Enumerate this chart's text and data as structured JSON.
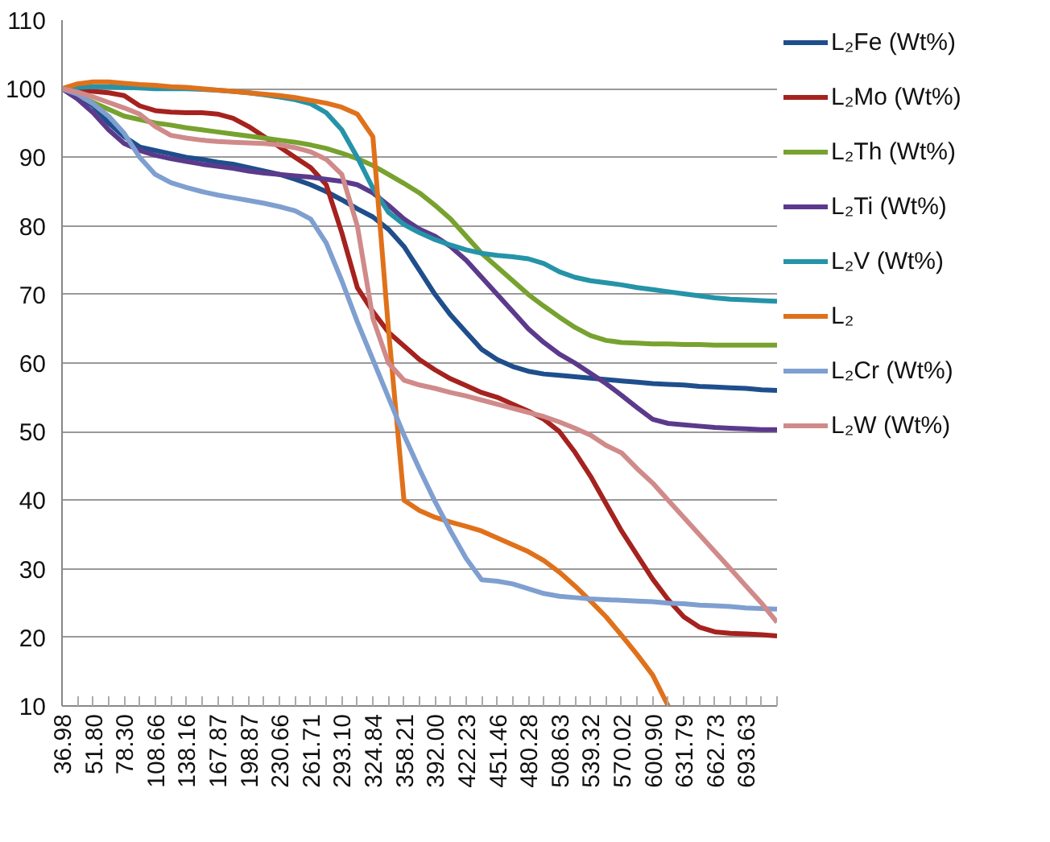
{
  "chart_data": {
    "type": "line",
    "categories": [
      "36.98",
      null,
      "51.80",
      null,
      "78.30",
      null,
      "108.66",
      null,
      "138.16",
      null,
      "167.87",
      null,
      "198.87",
      null,
      "230.66",
      null,
      "261.71",
      null,
      "293.10",
      null,
      "324.84",
      null,
      "358.21",
      null,
      "392.00",
      null,
      "422.23",
      null,
      "451.46",
      null,
      "480.28",
      null,
      "508.63",
      null,
      "539.32",
      null,
      "570.02",
      null,
      "600.90",
      null,
      "631.79",
      null,
      "662.73",
      null,
      "693.63",
      null,
      null
    ],
    "ylim": [
      10,
      110
    ],
    "yticks": [
      10,
      20,
      30,
      40,
      50,
      60,
      70,
      80,
      90,
      100,
      110
    ],
    "grid": "y",
    "legend": "right",
    "marker": "none",
    "line_style": "solid",
    "series": [
      {
        "name": "L₂Fe (Wt%)",
        "color": "#1f4e8c",
        "values": [
          100,
          99,
          97.5,
          95,
          93,
          91.5,
          91,
          90.5,
          90,
          89.7,
          89.3,
          89,
          88.5,
          88,
          87.5,
          86.8,
          86,
          85,
          83.8,
          82.5,
          81.3,
          79.5,
          77,
          73.5,
          70,
          67,
          64.5,
          62,
          60.5,
          59.5,
          58.8,
          58.4,
          58.2,
          58,
          57.8,
          57.6,
          57.4,
          57.2,
          57,
          56.9,
          56.8,
          56.6,
          56.5,
          56.4,
          56.3,
          56.1,
          56
        ]
      },
      {
        "name": "L₂Mo (Wt%)",
        "color": "#a5221e",
        "values": [
          100,
          99.9,
          99.6,
          99.4,
          99,
          97.5,
          96.8,
          96.6,
          96.5,
          96.5,
          96.3,
          95.7,
          94.5,
          93,
          91.5,
          90,
          88.5,
          86,
          79,
          71,
          67.5,
          64.5,
          62.5,
          60.5,
          59,
          57.7,
          56.7,
          55.7,
          55,
          54,
          53,
          51.8,
          50,
          47,
          43.5,
          39.5,
          35.5,
          32,
          28.5,
          25.5,
          23,
          21.5,
          20.8,
          20.6,
          20.5,
          20.4,
          20.2
        ]
      },
      {
        "name": "L₂Th (Wt%)",
        "color": "#77a22f",
        "values": [
          100,
          99,
          98,
          97,
          96,
          95.5,
          95,
          94.7,
          94.3,
          94,
          93.7,
          93.4,
          93.1,
          92.8,
          92.5,
          92.2,
          91.8,
          91.3,
          90.6,
          89.8,
          88.8,
          87.5,
          86.2,
          84.8,
          83,
          81,
          78.5,
          76,
          74,
          72,
          70,
          68.3,
          66.7,
          65.2,
          64,
          63.3,
          63,
          62.9,
          62.8,
          62.8,
          62.7,
          62.7,
          62.6,
          62.6,
          62.6,
          62.6,
          62.6
        ]
      },
      {
        "name": "L₂Ti (Wt%)",
        "color": "#5b3a8c",
        "values": [
          100,
          98.5,
          96.5,
          94,
          92,
          91,
          90.3,
          89.8,
          89.4,
          89,
          88.7,
          88.4,
          88,
          87.7,
          87.5,
          87.3,
          87.1,
          86.8,
          86.5,
          86,
          84.8,
          83,
          81,
          79.5,
          78.5,
          77,
          75,
          72.5,
          70,
          67.5,
          65,
          63,
          61.3,
          60,
          58.5,
          57,
          55.3,
          53.5,
          51.8,
          51.2,
          51,
          50.8,
          50.6,
          50.5,
          50.4,
          50.3,
          50.3
        ]
      },
      {
        "name": "L₂V (Wt%)",
        "color": "#2593a8",
        "values": [
          100,
          100.2,
          100.3,
          100.3,
          100.2,
          100.1,
          100,
          100,
          100,
          99.9,
          99.8,
          99.6,
          99.4,
          99.1,
          98.8,
          98.4,
          97.8,
          96.5,
          94,
          90,
          85.5,
          82,
          80.2,
          79,
          78,
          77.2,
          76.5,
          76,
          75.7,
          75.5,
          75.2,
          74.5,
          73.3,
          72.5,
          72,
          71.7,
          71.4,
          71,
          70.7,
          70.4,
          70.1,
          69.8,
          69.5,
          69.3,
          69.2,
          69.1,
          69
        ]
      },
      {
        "name": "L₂",
        "color": "#e0711b",
        "values": [
          100,
          100.7,
          101,
          101,
          100.8,
          100.6,
          100.5,
          100.3,
          100.2,
          100,
          99.8,
          99.6,
          99.4,
          99.2,
          99,
          98.7,
          98.3,
          97.9,
          97.3,
          96.3,
          93,
          65,
          40,
          38.5,
          37.5,
          36.8,
          36.2,
          35.5,
          34.5,
          33.5,
          32.5,
          31.2,
          29.5,
          27.5,
          25.3,
          23,
          20.3,
          17.5,
          14.5,
          10,
          null,
          null,
          null,
          null,
          null,
          null,
          null
        ]
      },
      {
        "name": "L₂Cr (Wt%)",
        "color": "#7f9fd0",
        "values": [
          100,
          99.2,
          97.8,
          96,
          93.5,
          90,
          87.5,
          86.3,
          85.6,
          85,
          84.5,
          84.1,
          83.7,
          83.3,
          82.8,
          82.2,
          81,
          77.5,
          72,
          66,
          60.5,
          55,
          49.5,
          44.5,
          39.8,
          35.5,
          31.5,
          28.4,
          28.2,
          27.8,
          27.1,
          26.4,
          26,
          25.8,
          25.6,
          25.5,
          25.4,
          25.3,
          25.2,
          25,
          24.9,
          24.7,
          24.6,
          24.5,
          24.3,
          24.2,
          24.1
        ]
      },
      {
        "name": "L₂W (Wt%)",
        "color": "#d08a8a",
        "values": [
          100,
          99.5,
          98.8,
          98,
          97.2,
          96.3,
          94.5,
          93.2,
          92.8,
          92.5,
          92.3,
          92.2,
          92.1,
          92,
          91.8,
          91.4,
          90.8,
          89.7,
          87.5,
          80,
          66.5,
          60,
          57.5,
          56.8,
          56.3,
          55.7,
          55.2,
          54.6,
          54,
          53.4,
          52.8,
          52.2,
          51.4,
          50.5,
          49.5,
          48,
          46.9,
          44.6,
          42.5,
          40,
          37.5,
          35,
          32.5,
          30,
          27.5,
          25,
          22.2
        ]
      }
    ]
  }
}
